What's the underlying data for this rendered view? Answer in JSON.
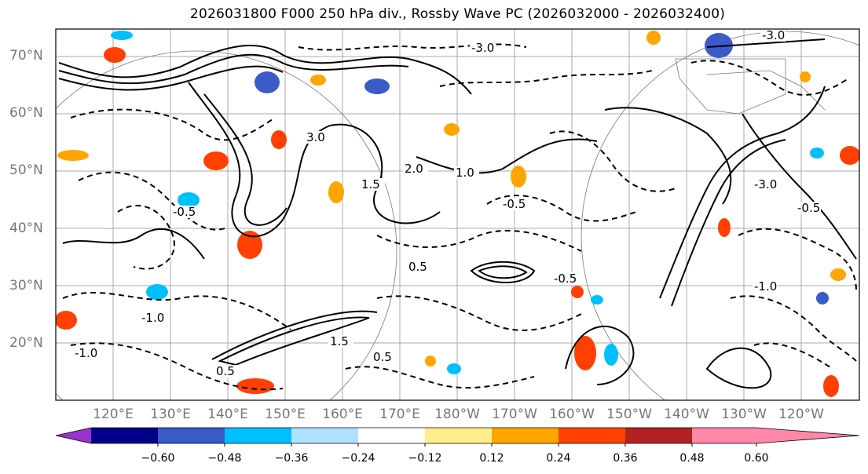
{
  "title": "2026031800 F000 250 hPa div., Rossby Wave PC (2026032000 - 2026032400)",
  "lat_labels": [
    "70°N",
    "60°N",
    "50°N",
    "40°N",
    "30°N",
    "20°N"
  ],
  "lon_labels": [
    "120°E",
    "130°E",
    "140°E",
    "150°E",
    "160°E",
    "170°E",
    "180°W",
    "170°W",
    "160°W",
    "150°W",
    "140°W",
    "130°W",
    "120°W"
  ],
  "colorbar": {
    "colors": [
      "#9932cc",
      "#00008b",
      "#3a5bc8",
      "#00bfff",
      "#b0e2ff",
      "#ffffff",
      "#ffec8b",
      "#ffa500",
      "#ff4000",
      "#b22222",
      "#ff88aa"
    ],
    "tick_labels": [
      "−0.60",
      "−0.48",
      "−0.36",
      "−0.24",
      "−0.12",
      "0.12",
      "0.24",
      "0.36",
      "0.48",
      "0.60"
    ]
  },
  "contour_labels": [
    "-3.0",
    "-3.0",
    "-1.0",
    "-0.5",
    "-0.5",
    "-1.0",
    "0.5",
    "0.5",
    "1.0",
    "1.5",
    "2.0",
    "3.0",
    "-3.0",
    "-0.5",
    "0.5",
    "1.5",
    "-1.0",
    "-0.5"
  ]
}
